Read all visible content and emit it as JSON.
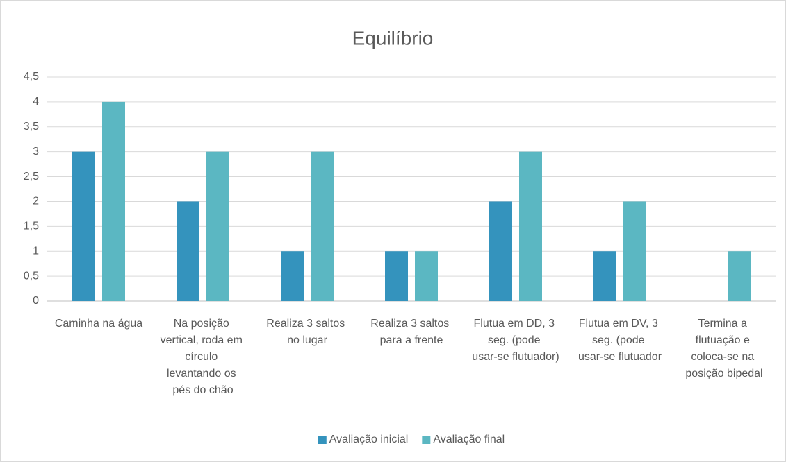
{
  "chart_data": {
    "type": "bar",
    "title": "Equilíbrio",
    "categories": [
      "Caminha na água",
      "Na posição vertical, roda em círculo levantando os pés do chão",
      "Realiza 3 saltos no lugar",
      "Realiza 3 saltos para a frente",
      "Flutua em DD, 3 seg. (pode usar-se flutuador)",
      "Flutua em DV, 3 seg. (pode usar-se flutuador",
      "Termina a flutuação e coloca-se na posição bipedal"
    ],
    "series": [
      {
        "name": "Avaliação inicial",
        "color": "#3493bd",
        "values": [
          3,
          2,
          1,
          1,
          2,
          1,
          0
        ]
      },
      {
        "name": "Avaliação final",
        "color": "#5bb7c2",
        "values": [
          4,
          3,
          3,
          1,
          3,
          2,
          1
        ]
      }
    ],
    "ylim": [
      0,
      4.5
    ],
    "yticks": [
      0,
      {
        "value": 0.5,
        "label": "0,5"
      },
      1,
      {
        "value": 1.5,
        "label": "1,5"
      },
      2,
      {
        "value": 2.5,
        "label": "2,5"
      },
      3,
      {
        "value": 3.5,
        "label": "3,5"
      },
      4,
      {
        "value": 4.5,
        "label": "4,5"
      }
    ],
    "grid": true,
    "legend": "bottom"
  }
}
